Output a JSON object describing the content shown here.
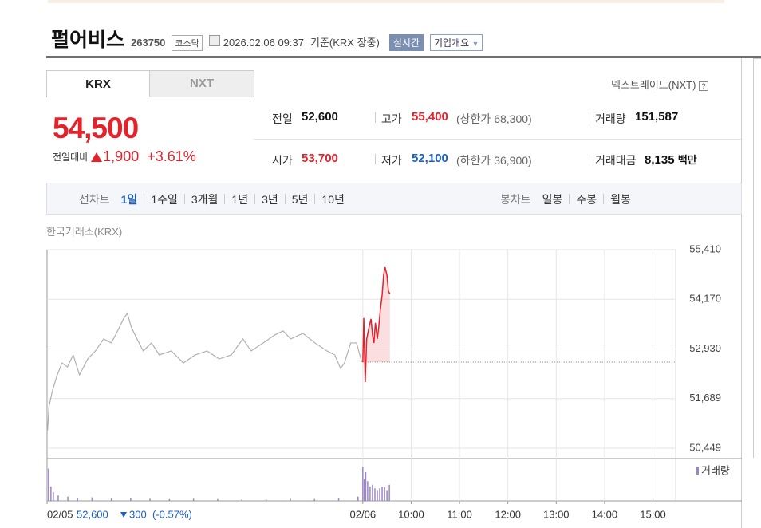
{
  "header": {
    "name": "펄어비스",
    "code": "263750",
    "market": "코스닥",
    "datetime": "2026.02.06 09:37",
    "basis": "기준(KRX 장중)",
    "realtime": "실시간",
    "company_info": "기업개요"
  },
  "tabs": [
    "KRX",
    "NXT"
  ],
  "nxt_link": "넥스트레이드(NXT)",
  "price": {
    "current": "54,500",
    "change_label": "전일대비",
    "change": "1,900",
    "change_pct": "+3.61%"
  },
  "quote": {
    "prev_close": {
      "label": "전일",
      "value": "52,600"
    },
    "high": {
      "label": "고가",
      "value": "55,400",
      "note": "(상한가 68,300)"
    },
    "volume": {
      "label": "거래량",
      "value": "151,587"
    },
    "open": {
      "label": "시가",
      "value": "53,700"
    },
    "low": {
      "label": "저가",
      "value": "52,100",
      "note": "(하한가 36,900)"
    },
    "amount": {
      "label": "거래대금",
      "value": "8,135",
      "unit": "백만"
    }
  },
  "controls": {
    "line_label": "선차트",
    "periods": [
      "1일",
      "1주일",
      "3개월",
      "1년",
      "3년",
      "5년",
      "10년"
    ],
    "candle_label": "봉차트",
    "candle_periods": [
      "일봉",
      "주봉",
      "월봉"
    ]
  },
  "chart": {
    "type": "line",
    "source": "한국거래소(KRX)",
    "xlim": [
      2.47,
      15.47
    ],
    "xticks": [
      {
        "value": 2.47,
        "label": "02/05"
      },
      {
        "value": 9,
        "label": "02/06"
      },
      {
        "value": 10,
        "label": "10:00"
      },
      {
        "value": 11,
        "label": "11:00"
      },
      {
        "value": 12,
        "label": "12:00"
      },
      {
        "value": 13,
        "label": "13:00"
      },
      {
        "value": 14,
        "label": "14:00"
      },
      {
        "value": 15,
        "label": "15:00"
      }
    ],
    "ylim": [
      50449,
      55410
    ],
    "yticks": [
      {
        "value": 55410,
        "label": "55,410"
      },
      {
        "value": 54170,
        "label": "54,170"
      },
      {
        "value": 52930,
        "label": "52,930"
      },
      {
        "value": 51689,
        "label": "51,689"
      },
      {
        "value": 50449,
        "label": "50,449"
      }
    ],
    "reference_line": 52600,
    "series": [
      {
        "color": "#b0b0b0",
        "x": [
          2.48,
          2.51,
          2.58,
          2.68,
          2.78,
          2.89,
          3.01,
          3.14,
          3.31,
          3.47,
          3.64,
          3.8,
          3.93,
          4.05,
          4.13,
          4.21,
          4.33,
          4.46,
          4.63,
          4.79,
          5.04,
          5.29,
          5.53,
          5.78,
          6.03,
          6.28,
          6.52,
          6.69,
          6.94,
          7.18,
          7.35,
          7.51,
          7.76,
          8.01,
          8.26,
          8.42,
          8.54,
          8.62,
          8.75,
          8.87,
          8.98
        ],
        "values": [
          50890,
          51490,
          51880,
          52280,
          52580,
          52480,
          52780,
          52280,
          52680,
          52880,
          53180,
          53080,
          53380,
          53680,
          53820,
          53480,
          53180,
          52880,
          53080,
          52780,
          52880,
          52580,
          52780,
          52880,
          52680,
          52780,
          53180,
          52880,
          53080,
          53280,
          53380,
          53180,
          53320,
          53080,
          52880,
          52780,
          52440,
          52580,
          53080,
          53080,
          52600
        ]
      },
      {
        "color": "#e3222b",
        "x": [
          9,
          9.02,
          9.05,
          9.08,
          9.13,
          9.17,
          9.2,
          9.23,
          9.26,
          9.3,
          9.33,
          9.36,
          9.4,
          9.43,
          9.46,
          9.5,
          9.53,
          9.56
        ],
        "values": [
          52600,
          53700,
          52100,
          53180,
          53480,
          53680,
          53280,
          53080,
          53580,
          53180,
          53480,
          53880,
          54280,
          54770,
          54970,
          54770,
          54370,
          54310
        ]
      }
    ],
    "volume": {
      "name": "거래량",
      "color": "#9b86c8",
      "ylim": [
        0,
        10000
      ],
      "x": [
        2.5,
        2.55,
        2.6,
        2.7,
        2.9,
        3.1,
        3.4,
        3.8,
        4.2,
        4.6,
        5,
        5.5,
        6,
        6.5,
        7,
        7.5,
        8,
        8.5,
        8.9,
        9,
        9.03,
        9.06,
        9.1,
        9.15,
        9.2,
        9.25,
        9.3,
        9.35,
        9.4,
        9.45,
        9.5,
        9.55
      ],
      "values": [
        9000,
        4000,
        2500,
        1500,
        1200,
        800,
        1000,
        700,
        900,
        600,
        500,
        600,
        500,
        400,
        500,
        600,
        500,
        700,
        1200,
        9500,
        6000,
        8000,
        5500,
        4000,
        4500,
        3500,
        3000,
        3500,
        4000,
        3800,
        3000,
        4500
      ]
    },
    "footer": {
      "price": "52,600",
      "change": "300",
      "change_pct": "(-0.57%)"
    }
  }
}
